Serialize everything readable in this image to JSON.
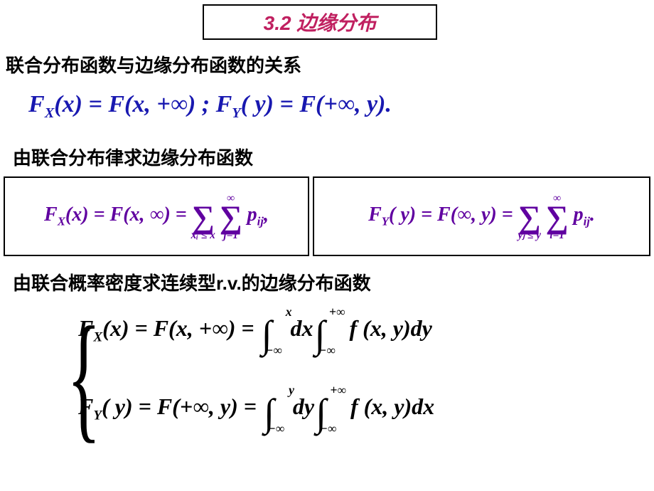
{
  "colors": {
    "title": "#c02060",
    "formula1": "#1818b0",
    "sumformula": "#6000a0",
    "text": "#000000",
    "bg": "#ffffff"
  },
  "title": "3.2   边缘分布",
  "heading1": "联合分布函数与边缘分布函数的关系",
  "row1": {
    "p1": "F",
    "p1sub": "X",
    "p2": "(x) = F(x, +∞)  ;   F",
    "p2sub": "Y",
    "p3": "( y) = F(+∞, y)."
  },
  "heading2": "由联合分布律求边缘分布函数",
  "boxL": {
    "lhs1": "F",
    "lhs1sub": "X",
    "lhs2": "(x) = F(x, ∞) = ",
    "sum1top": "",
    "sum1bot": "xᵢ ≤ x",
    "sum2top": "∞",
    "sum2bot": "j=1",
    "rhs": " p",
    "rhssub": "ij",
    "tail": ","
  },
  "boxR": {
    "lhs1": "F",
    "lhs1sub": "Y",
    "lhs2": "( y) = F(∞, y) = ",
    "sum1top": "",
    "sum1bot": "yⱼ ≤ y",
    "sum2top": "∞",
    "sum2bot": "i=1",
    "rhs": " p",
    "rhssub": "ij",
    "tail": "."
  },
  "heading3": "由联合概率密度求连续型r.v.的边缘分布函数",
  "line1": {
    "a": "F",
    "asub": "X",
    "b": "(x) = F(x, +∞) = ",
    "i1top": "x",
    "i1bot": "−∞",
    "c": "dx",
    "i2top": "+∞",
    "i2bot": "−∞",
    "d": " f (x, y)dy"
  },
  "line2": {
    "a": "F",
    "asub": "Y",
    "b": "( y) = F(+∞, y) = ",
    "i1top": "y",
    "i1bot": "−∞",
    "c": "dy",
    "i2top": "+∞",
    "i2bot": "−∞",
    "d": " f (x, y)dx"
  }
}
